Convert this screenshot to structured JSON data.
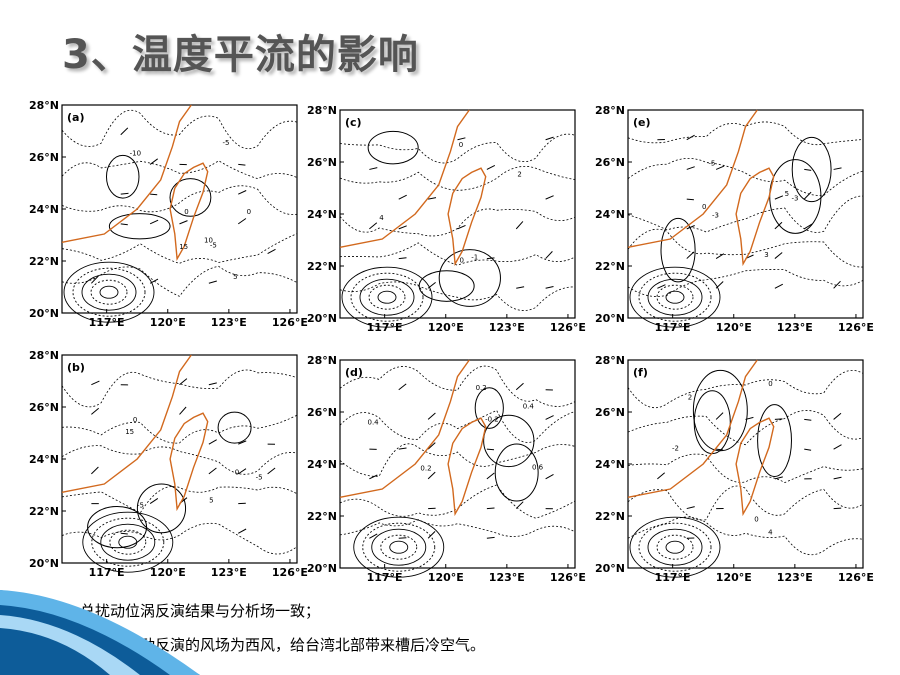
{
  "title": "3、温度平流的影响",
  "panels": [
    {
      "id": "a",
      "label": "(a)"
    },
    {
      "id": "c",
      "label": "(c)"
    },
    {
      "id": "e",
      "label": "(e)"
    },
    {
      "id": "b",
      "label": "(b)"
    },
    {
      "id": "d",
      "label": "(d)"
    },
    {
      "id": "f",
      "label": "(f)"
    }
  ],
  "axes": {
    "lat_labels": [
      "28°N",
      "26°N",
      "24°N",
      "22°N",
      "20°N"
    ],
    "lon_labels": [
      "117°E",
      "120°E",
      "123°E",
      "126°E"
    ]
  },
  "contour_labels": {
    "a": [
      "-5",
      "0",
      "5",
      "-5",
      "-10",
      "15",
      "10",
      "0"
    ],
    "c": [
      "0",
      "2",
      "4",
      "-1",
      "0"
    ],
    "e": [
      "0",
      "-5",
      "-3",
      "-3",
      "3",
      "5"
    ],
    "b": [
      "0",
      "-5",
      "5",
      "0",
      "15",
      "-5"
    ],
    "d": [
      "0.4",
      "0.2",
      "0.6",
      "0.4",
      "-0.2",
      "0.2"
    ],
    "f": [
      "2",
      "0",
      "-2",
      "4",
      "0"
    ]
  },
  "colors": {
    "coast": "#d2691e",
    "title": "#555555",
    "swoosh": "#1b7fc4"
  },
  "bullets": [
    {
      "icon": "arrow-bullet-icon",
      "text": "总扰动位涡反演结果与分析场一致；"
    },
    {
      "icon": "arrow-bullet-icon",
      "text": "西风槽扰动反演的风场为西风，给台湾北部带来槽后冷空气。"
    }
  ]
}
